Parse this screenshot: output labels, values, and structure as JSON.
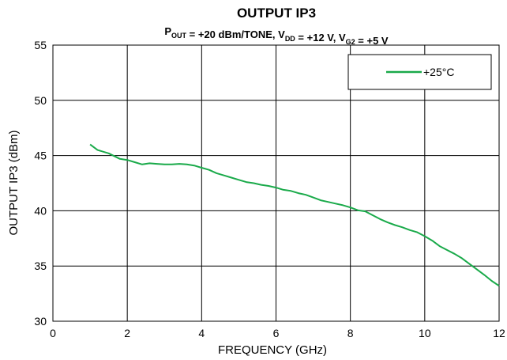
{
  "chart_data": {
    "type": "line",
    "title": "OUTPUT IP3",
    "subtitle": {
      "parts": [
        {
          "text": "P",
          "sub": "OUT"
        },
        {
          "text": " = +20 dBm/TONE, V",
          "sub": "DD"
        },
        {
          "text": " = +12 V, V",
          "sub": "G2"
        },
        {
          "text": " = +5 V",
          "sub": ""
        }
      ]
    },
    "xlabel": "FREQUENCY (GHz)",
    "ylabel": "OUTPUT IP3 (dBm)",
    "xlim": [
      0,
      12
    ],
    "ylim": [
      30,
      55
    ],
    "xticks": [
      0,
      2,
      4,
      6,
      8,
      10,
      12
    ],
    "yticks": [
      30,
      35,
      40,
      45,
      50,
      55
    ],
    "grid": true,
    "legend_position": "top-right",
    "series": [
      {
        "name": "+25°C",
        "color": "#1aaa4a",
        "x": [
          1.0,
          1.2,
          1.5,
          1.8,
          2.0,
          2.2,
          2.4,
          2.6,
          2.8,
          3.0,
          3.2,
          3.4,
          3.6,
          3.8,
          4.0,
          4.2,
          4.4,
          4.6,
          4.8,
          5.0,
          5.2,
          5.4,
          5.6,
          5.8,
          6.0,
          6.2,
          6.4,
          6.6,
          6.8,
          7.0,
          7.2,
          7.4,
          7.6,
          7.8,
          8.0,
          8.2,
          8.4,
          8.6,
          8.8,
          9.0,
          9.2,
          9.4,
          9.6,
          9.8,
          10.0,
          10.2,
          10.4,
          10.6,
          10.8,
          11.0,
          11.2,
          11.4,
          11.6,
          11.8,
          12.0
        ],
        "y": [
          46.0,
          45.5,
          45.2,
          44.7,
          44.6,
          44.4,
          44.2,
          44.3,
          44.25,
          44.2,
          44.2,
          44.25,
          44.2,
          44.1,
          43.9,
          43.7,
          43.4,
          43.2,
          43.0,
          42.8,
          42.6,
          42.5,
          42.35,
          42.25,
          42.1,
          41.9,
          41.8,
          41.6,
          41.45,
          41.2,
          40.95,
          40.8,
          40.65,
          40.5,
          40.3,
          40.05,
          39.95,
          39.6,
          39.25,
          38.95,
          38.7,
          38.5,
          38.25,
          38.05,
          37.7,
          37.3,
          36.8,
          36.45,
          36.1,
          35.7,
          35.2,
          34.7,
          34.2,
          33.65,
          33.2
        ]
      }
    ]
  }
}
